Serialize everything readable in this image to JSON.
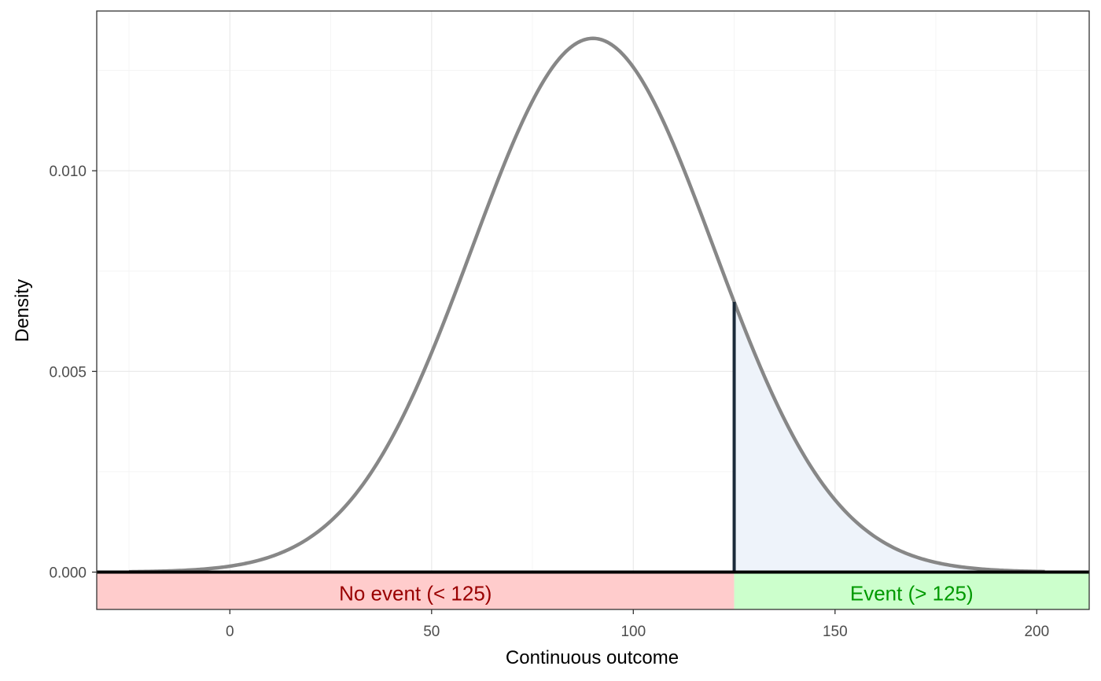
{
  "chart_data": {
    "type": "area",
    "title": "",
    "xlabel": "Continuous outcome",
    "ylabel": "Density",
    "xlim": [
      -33,
      213
    ],
    "ylim": [
      -0.00093,
      0.01398
    ],
    "x_ticks": [
      0,
      50,
      100,
      150,
      200
    ],
    "x_tick_labels": [
      "0",
      "50",
      "100",
      "150",
      "200"
    ],
    "y_ticks": [
      0.0,
      0.005,
      0.01
    ],
    "y_tick_labels": [
      "0.000",
      "0.005",
      "0.010"
    ],
    "grid": true,
    "legend": "none",
    "distribution": {
      "name": "normal",
      "mean": 90,
      "sd": 30,
      "x_range": [
        -25,
        202
      ]
    },
    "threshold": 125,
    "series": [
      {
        "values": [
          {
            "x": -25,
            "y": 3e-05
          },
          {
            "x": 0,
            "y": 0.00015
          },
          {
            "x": 25,
            "y": 0.00128
          },
          {
            "x": 50,
            "y": 0.00547
          },
          {
            "x": 75,
            "y": 0.01173
          },
          {
            "x": 90,
            "y": 0.0133
          },
          {
            "x": 100,
            "y": 0.01258
          },
          {
            "x": 125,
            "y": 0.00676
          },
          {
            "x": 150,
            "y": 0.0018
          },
          {
            "x": 175,
            "y": 0.00024
          },
          {
            "x": 200,
            "y": 2e-05
          }
        ]
      }
    ],
    "regions": [
      {
        "label": "No event (< 125)",
        "from": -33,
        "to": 125,
        "fill": "#ffcccc",
        "text_color": "#990000"
      },
      {
        "label": "Event (> 125)",
        "from": 125,
        "to": 213,
        "fill": "#ccffcc",
        "text_color": "#009900"
      }
    ],
    "colors": {
      "curve": "#878787",
      "threshold_line": "#1b2a3a",
      "tail_fill": "#eef3fa",
      "baseline": "#000000",
      "grid_major": "#ebebeb",
      "grid_minor": "#f5f5f5"
    }
  }
}
